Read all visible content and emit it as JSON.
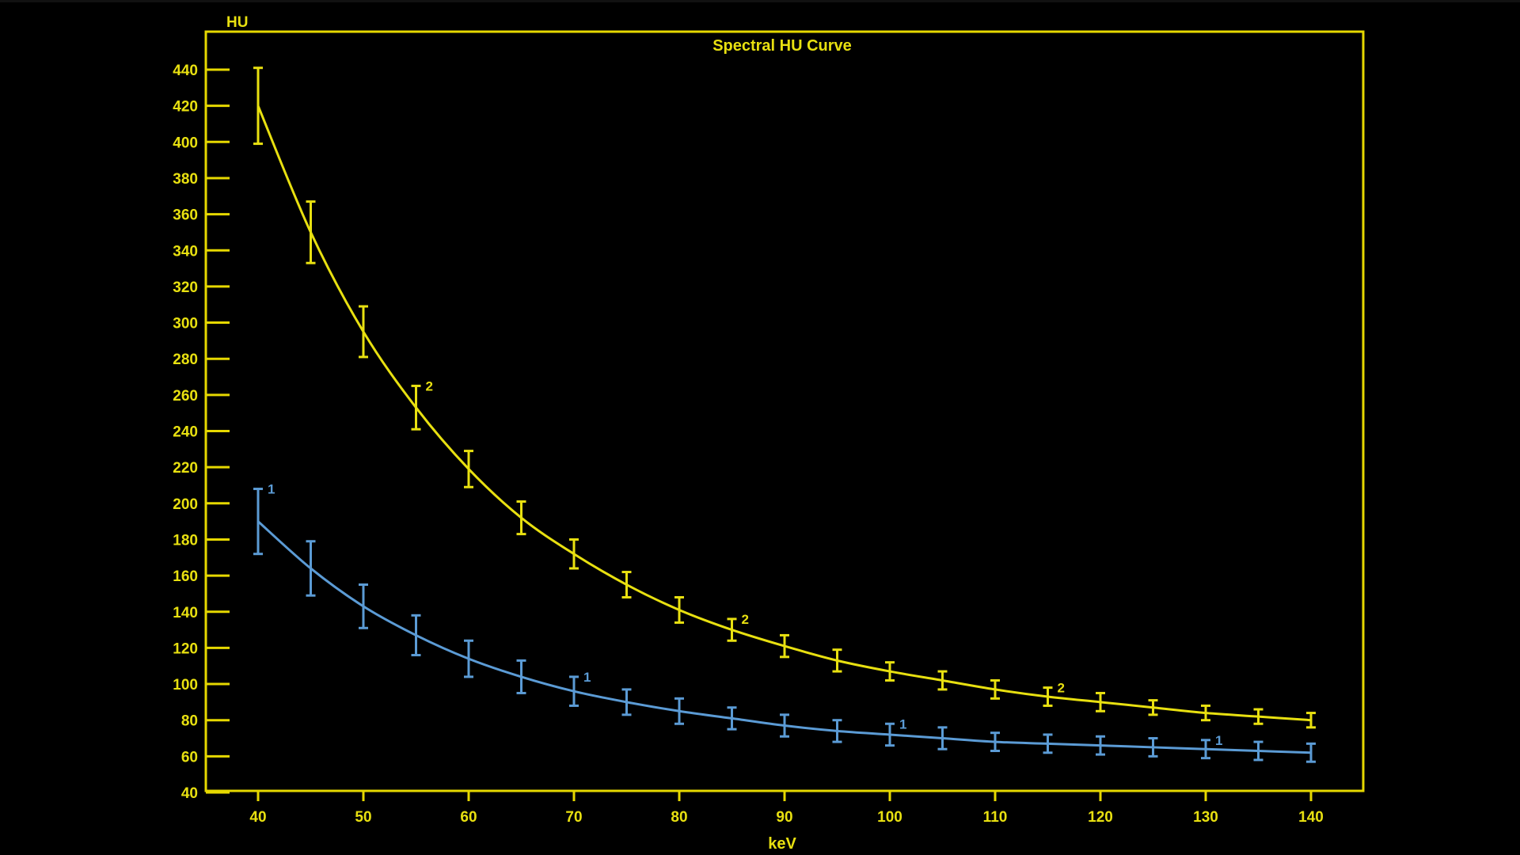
{
  "chart_data": {
    "type": "line",
    "title": "Spectral HU Curve",
    "xlabel": "keV",
    "ylabel": "HU",
    "xlim": [
      40,
      140
    ],
    "ylim": [
      40,
      440
    ],
    "x_ticks": [
      "40",
      "50",
      "60",
      "70",
      "80",
      "90",
      "100",
      "110",
      "120",
      "130",
      "140"
    ],
    "y_ticks": [
      "40",
      "60",
      "80",
      "100",
      "120",
      "140",
      "160",
      "180",
      "200",
      "220",
      "240",
      "260",
      "280",
      "300",
      "320",
      "340",
      "360",
      "380",
      "400",
      "420",
      "440"
    ],
    "x": [
      40,
      45,
      50,
      55,
      60,
      65,
      70,
      75,
      80,
      85,
      90,
      95,
      100,
      105,
      110,
      115,
      120,
      125,
      130,
      135,
      140
    ],
    "grid": false,
    "legend": "none",
    "axis_color": "#e6d800",
    "background_color": "#000000",
    "series": [
      {
        "marker_label": "2",
        "color": "#e8e010",
        "values": [
          420,
          350,
          295,
          253,
          219,
          192,
          172,
          155,
          141,
          130,
          121,
          113,
          107,
          102,
          97,
          93,
          90,
          87,
          84,
          82,
          80
        ],
        "errors": [
          21,
          17,
          14,
          12,
          10,
          9,
          8,
          7,
          7,
          6,
          6,
          6,
          5,
          5,
          5,
          5,
          5,
          4,
          4,
          4,
          4
        ],
        "label_positions_x": [
          55,
          85,
          115
        ]
      },
      {
        "marker_label": "1",
        "color": "#5b9bd5",
        "values": [
          190,
          164,
          143,
          127,
          114,
          104,
          96,
          90,
          85,
          81,
          77,
          74,
          72,
          70,
          68,
          67,
          66,
          65,
          64,
          63,
          62
        ],
        "errors": [
          18,
          15,
          12,
          11,
          10,
          9,
          8,
          7,
          7,
          6,
          6,
          6,
          6,
          6,
          5,
          5,
          5,
          5,
          5,
          5,
          5
        ],
        "label_positions_x": [
          40,
          70,
          100,
          130
        ]
      }
    ]
  }
}
